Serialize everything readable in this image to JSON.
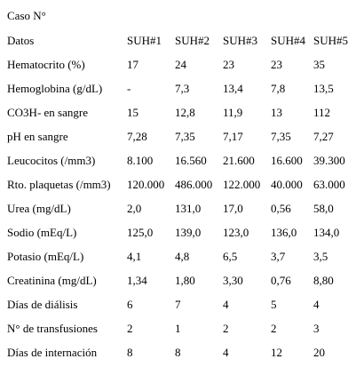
{
  "table": {
    "caption": "Caso N°",
    "header": [
      "Datos",
      "SUH#1",
      "SUH#2",
      "SUH#3",
      "SUH#4",
      "SUH#5"
    ],
    "rows": [
      [
        "Hematocrito (%)",
        "17",
        "24",
        "23",
        "23",
        "35"
      ],
      [
        "Hemoglobina (g/dL)",
        "-",
        "7,3",
        "13,4",
        "7,8",
        "13,5"
      ],
      [
        "CO3H- en sangre",
        "15",
        "12,8",
        "11,9",
        "13",
        "112"
      ],
      [
        "pH en sangre",
        "7,28",
        "7,35",
        "7,17",
        "7,35",
        "7,27"
      ],
      [
        "Leucocitos (/mm3)",
        "8.100",
        "16.560",
        "21.600",
        "16.600",
        "39.300"
      ],
      [
        "Rto. plaquetas (/mm3)",
        "120.000",
        "486.000",
        "122.000",
        "40.000",
        "63.000"
      ],
      [
        "Urea (mg/dL)",
        "2,0",
        "131,0",
        "17,0",
        "0,56",
        "58,0"
      ],
      [
        "Sodio (mEq/L)",
        "125,0",
        "139,0",
        "123,0",
        "136,0",
        "134,0"
      ],
      [
        "Potasio (mEq/L)",
        "4,1",
        "4,8",
        "6,5",
        "3,7",
        "3,5"
      ],
      [
        "Creatinina (mg/dL)",
        "1,34",
        "1,80",
        "3,30",
        "0,76",
        "8,80"
      ],
      [
        "Días de diálisis",
        "6",
        "7",
        "4",
        "5",
        "4"
      ],
      [
        "N° de transfusiones",
        "2",
        "1",
        "2",
        "2",
        "3"
      ],
      [
        "Días de internación",
        "8",
        "8",
        "4",
        "12",
        "20"
      ]
    ]
  }
}
